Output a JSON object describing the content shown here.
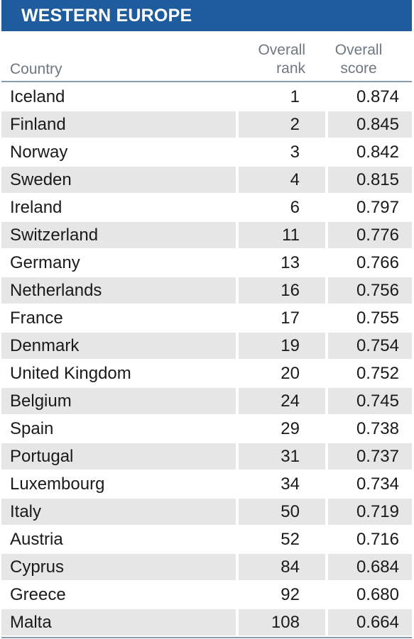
{
  "title": "WESTERN EUROPE",
  "columns": {
    "country": "Country",
    "rank_line1": "Overall",
    "rank_line2": "rank",
    "score_line1": "Overall",
    "score_line2": "score"
  },
  "rows": [
    {
      "country": "Iceland",
      "rank": "1",
      "score": "0.874"
    },
    {
      "country": "Finland",
      "rank": "2",
      "score": "0.845"
    },
    {
      "country": "Norway",
      "rank": "3",
      "score": "0.842"
    },
    {
      "country": "Sweden",
      "rank": "4",
      "score": "0.815"
    },
    {
      "country": "Ireland",
      "rank": "6",
      "score": "0.797"
    },
    {
      "country": "Switzerland",
      "rank": "11",
      "score": "0.776"
    },
    {
      "country": "Germany",
      "rank": "13",
      "score": "0.766"
    },
    {
      "country": "Netherlands",
      "rank": "16",
      "score": "0.756"
    },
    {
      "country": "France",
      "rank": "17",
      "score": "0.755"
    },
    {
      "country": "Denmark",
      "rank": "19",
      "score": "0.754"
    },
    {
      "country": "United Kingdom",
      "rank": "20",
      "score": "0.752"
    },
    {
      "country": "Belgium",
      "rank": "24",
      "score": "0.745"
    },
    {
      "country": "Spain",
      "rank": "29",
      "score": "0.738"
    },
    {
      "country": "Portugal",
      "rank": "31",
      "score": "0.737"
    },
    {
      "country": "Luxembourg",
      "rank": "34",
      "score": "0.734"
    },
    {
      "country": "Italy",
      "rank": "50",
      "score": "0.719"
    },
    {
      "country": "Austria",
      "rank": "52",
      "score": "0.716"
    },
    {
      "country": "Cyprus",
      "rank": "84",
      "score": "0.684"
    },
    {
      "country": "Greece",
      "rank": "92",
      "score": "0.680"
    },
    {
      "country": "Malta",
      "rank": "108",
      "score": "0.664"
    }
  ],
  "colors": {
    "title_bg": "#1f5c9e",
    "title_text": "#ffffff",
    "header_text": "#6d7882",
    "stripe": "#e6e6e6",
    "rule": "#8a9bb0"
  }
}
